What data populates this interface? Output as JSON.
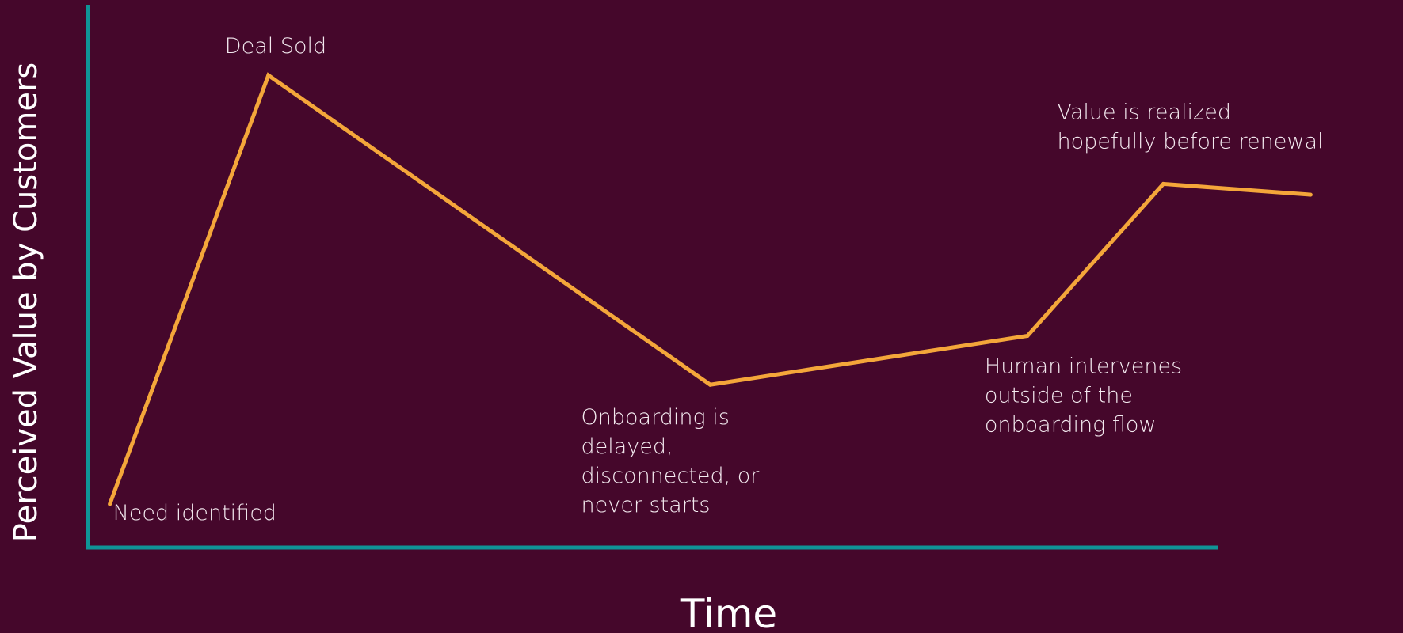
{
  "colors": {
    "background": "#45072b",
    "axis": "#0f9497",
    "line": "#f4a63a",
    "text": "#f3e9ef"
  },
  "chart_data": {
    "type": "line",
    "title": "",
    "xlabel": "Time",
    "ylabel": "Perceived Value by Customers",
    "grid": false,
    "legend": "none",
    "xlim": [
      0,
      100
    ],
    "ylim": [
      0,
      100
    ],
    "series": [
      {
        "x": [
          2,
          16,
          55,
          83,
          95,
          108
        ],
        "y": [
          8,
          87,
          30,
          39,
          67,
          65
        ]
      }
    ],
    "annotations": [
      {
        "point": 0,
        "lines": [
          "Need identified"
        ]
      },
      {
        "point": 1,
        "lines": [
          "Deal Sold"
        ]
      },
      {
        "point": 2,
        "lines": [
          "Onboarding is",
          "delayed,",
          "disconnected, or",
          "never starts"
        ]
      },
      {
        "point": 3,
        "lines": [
          "Human intervenes",
          "outside of the",
          "onboarding flow"
        ]
      },
      {
        "point": 4,
        "lines": [
          "Value is realized",
          "hopefully before renewal"
        ]
      }
    ]
  }
}
